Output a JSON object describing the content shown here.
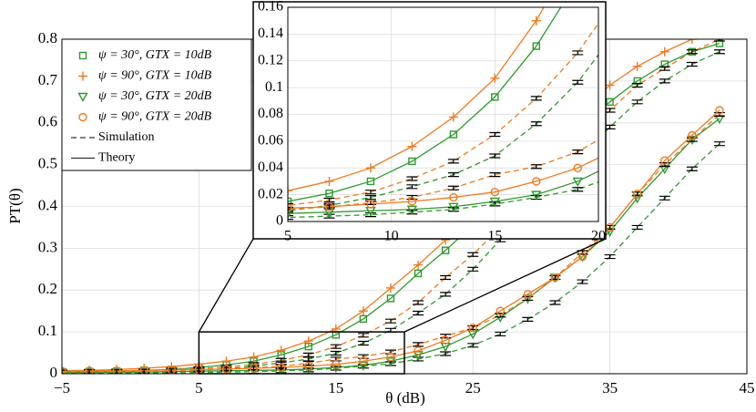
{
  "chart_data": {
    "type": "line",
    "xlabel": "θ (dB)",
    "ylabel": "PT(θ)",
    "x": [
      -5,
      -3,
      -1,
      1,
      3,
      5,
      7,
      9,
      11,
      13,
      15,
      17,
      19,
      21,
      23,
      25,
      27,
      29,
      31,
      33,
      35,
      37,
      39,
      41,
      43
    ],
    "xlim": [
      -5,
      45
    ],
    "ylim": [
      0,
      0.8
    ],
    "xticks": [
      {
        "value": -5,
        "label": "−5"
      },
      5,
      15,
      25,
      35,
      45
    ],
    "yticks": [
      0,
      0.1,
      0.2,
      0.3,
      0.4,
      0.5,
      0.6,
      0.7,
      0.8
    ],
    "grid": true,
    "series": [
      {
        "name": "ψ = 30°, GTX = 10dB",
        "color": "#2e9a2e",
        "marker": "square",
        "values": [
          0.004,
          0.005,
          0.006,
          0.008,
          0.01,
          0.015,
          0.021,
          0.03,
          0.045,
          0.065,
          0.093,
          0.131,
          0.18,
          0.24,
          0.295,
          0.355,
          0.42,
          0.48,
          0.54,
          0.6,
          0.65,
          0.7,
          0.74,
          0.77,
          0.79
        ],
        "simulation": [
          0.002,
          0.003,
          0.004,
          0.005,
          0.006,
          0.008,
          0.012,
          0.018,
          0.026,
          0.035,
          0.049,
          0.073,
          0.104,
          0.145,
          0.19,
          0.25,
          0.32,
          0.38,
          0.45,
          0.52,
          0.59,
          0.65,
          0.7,
          0.74,
          0.77
        ]
      },
      {
        "name": "ψ = 90°, GTX = 10dB",
        "color": "#f07a20",
        "marker": "plus",
        "values": [
          0.007,
          0.008,
          0.01,
          0.013,
          0.017,
          0.023,
          0.03,
          0.04,
          0.056,
          0.078,
          0.107,
          0.15,
          0.205,
          0.26,
          0.32,
          0.38,
          0.44,
          0.5,
          0.56,
          0.63,
          0.69,
          0.735,
          0.77,
          0.8,
          null
        ],
        "simulation": [
          0.004,
          0.005,
          0.006,
          0.008,
          0.01,
          0.012,
          0.016,
          0.022,
          0.032,
          0.045,
          0.065,
          0.092,
          0.126,
          0.17,
          0.23,
          0.285,
          0.35,
          0.42,
          0.49,
          0.56,
          0.63,
          0.69,
          0.73,
          0.77,
          0.8
        ]
      },
      {
        "name": "ψ = 30°, GTX = 20dB",
        "color": "#2e9a2e",
        "marker": "triangle",
        "values": [
          0.003,
          0.003,
          0.004,
          0.004,
          0.005,
          0.006,
          0.007,
          0.008,
          0.009,
          0.011,
          0.015,
          0.02,
          0.03,
          0.045,
          0.065,
          0.095,
          0.135,
          0.18,
          0.23,
          0.28,
          0.34,
          0.42,
          0.49,
          0.56,
          0.61
        ],
        "simulation": [
          0.001,
          0.001,
          0.002,
          0.002,
          0.002,
          0.003,
          0.004,
          0.005,
          0.007,
          0.009,
          0.013,
          0.018,
          0.024,
          0.035,
          0.048,
          0.068,
          0.095,
          0.13,
          0.17,
          0.22,
          0.28,
          0.35,
          0.42,
          0.49,
          0.55
        ]
      },
      {
        "name": "ψ = 90°, GTX = 20dB",
        "color": "#f07a20",
        "marker": "circle",
        "values": [
          0.006,
          0.007,
          0.007,
          0.008,
          0.009,
          0.01,
          0.011,
          0.013,
          0.015,
          0.018,
          0.022,
          0.03,
          0.04,
          0.055,
          0.08,
          0.11,
          0.15,
          0.19,
          0.23,
          0.28,
          0.35,
          0.43,
          0.51,
          0.57,
          0.63
        ],
        "simulation": [
          0.004,
          0.005,
          0.005,
          0.006,
          0.007,
          0.009,
          0.011,
          0.014,
          0.018,
          0.025,
          0.035,
          0.041,
          0.052,
          0.07,
          0.09,
          0.11,
          0.14,
          0.18,
          0.23,
          0.29,
          0.35,
          0.43,
          0.5,
          0.56,
          0.62
        ]
      }
    ],
    "style_legend": [
      {
        "name": "Simulation",
        "dashed": true
      },
      {
        "name": "Theory",
        "dashed": false
      }
    ],
    "inset": {
      "xlim": [
        5,
        20
      ],
      "ylim": [
        0,
        0.16
      ],
      "xticks": [
        5,
        10,
        15,
        20
      ],
      "yticks": [
        0,
        0.02,
        0.04,
        0.06,
        0.08,
        0.1,
        0.12,
        0.14,
        0.16
      ]
    }
  }
}
